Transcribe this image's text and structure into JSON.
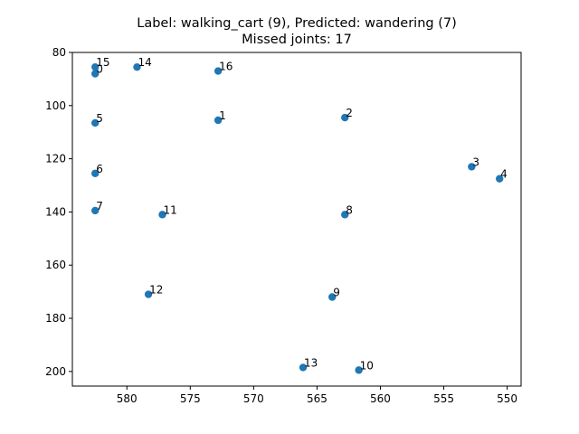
{
  "chart_data": {
    "type": "scatter",
    "title": "Label: walking_cart (9), Predicted: wandering (7)",
    "subtitle": "Missed joints: 17",
    "xlabel": "",
    "ylabel": "",
    "xlim": [
      584.3,
      548.9
    ],
    "ylim": [
      205.5,
      80
    ],
    "x_inverted": true,
    "y_inverted": true,
    "xticks": [
      580,
      575,
      570,
      565,
      560,
      555,
      550
    ],
    "yticks": [
      80,
      100,
      120,
      140,
      160,
      180,
      200
    ],
    "grid": false,
    "marker_color": "#1f77b4",
    "points": [
      {
        "label": "0",
        "x": 582.5,
        "y": 88.0
      },
      {
        "label": "1",
        "x": 572.8,
        "y": 105.5
      },
      {
        "label": "2",
        "x": 562.8,
        "y": 104.5
      },
      {
        "label": "3",
        "x": 552.8,
        "y": 123.0
      },
      {
        "label": "4",
        "x": 550.6,
        "y": 127.5
      },
      {
        "label": "5",
        "x": 582.5,
        "y": 106.5
      },
      {
        "label": "6",
        "x": 582.5,
        "y": 125.5
      },
      {
        "label": "7",
        "x": 582.5,
        "y": 139.5
      },
      {
        "label": "8",
        "x": 562.8,
        "y": 141.0
      },
      {
        "label": "9",
        "x": 563.8,
        "y": 172.0
      },
      {
        "label": "10",
        "x": 561.7,
        "y": 199.5
      },
      {
        "label": "11",
        "x": 577.2,
        "y": 141.0
      },
      {
        "label": "12",
        "x": 578.3,
        "y": 171.0
      },
      {
        "label": "13",
        "x": 566.1,
        "y": 198.5
      },
      {
        "label": "14",
        "x": 579.2,
        "y": 85.5
      },
      {
        "label": "15",
        "x": 582.5,
        "y": 85.5
      },
      {
        "label": "16",
        "x": 572.8,
        "y": 87.0
      }
    ]
  }
}
